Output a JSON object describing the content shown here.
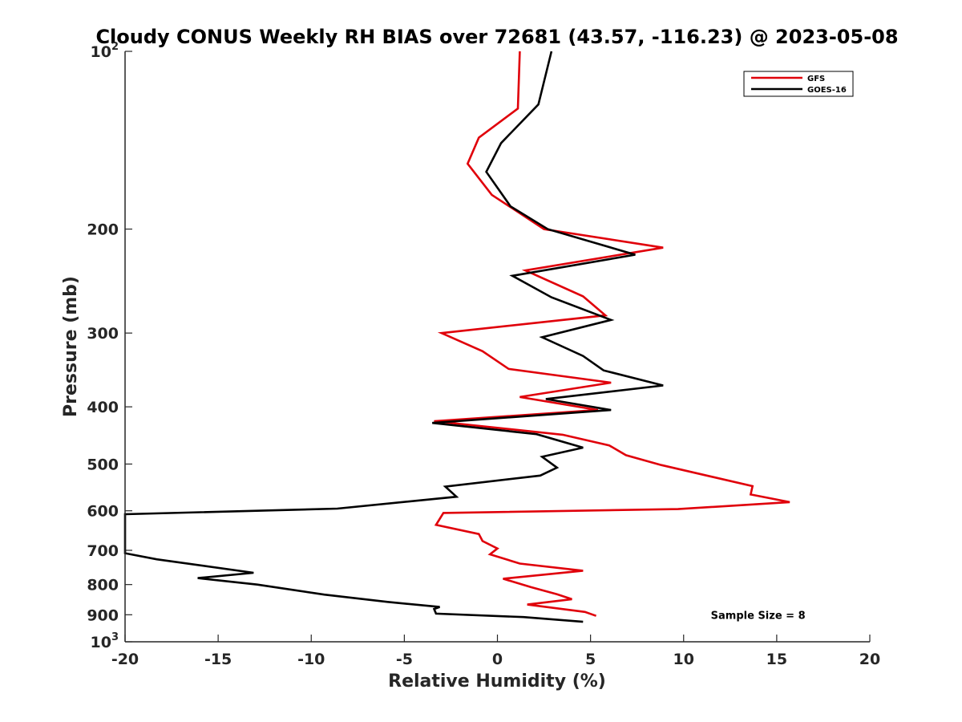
{
  "chart_data": {
    "type": "line",
    "title": "Cloudy CONUS Weekly RH BIAS over 72681 (43.57, -116.23) @ 2023-05-08",
    "xlabel": "Relative Humidity (%)",
    "ylabel": "Pressure (mb)",
    "xlim": [
      -20,
      20
    ],
    "ylim": [
      1000,
      100
    ],
    "y_scale": "log",
    "y_reversed": true,
    "grid": false,
    "legend_position": "top-right",
    "x_ticks": [
      -20,
      -15,
      -10,
      -5,
      0,
      5,
      10,
      15,
      20
    ],
    "x_tick_labels": [
      "-20",
      "-15",
      "-10",
      "-5",
      "0",
      "5",
      "10",
      "15",
      "20"
    ],
    "y_ticks": [
      100,
      200,
      300,
      400,
      500,
      600,
      700,
      800,
      900,
      1000
    ],
    "y_tick_labels": [
      {
        "base": "10",
        "exp": "2"
      },
      {
        "base": "200",
        "exp": ""
      },
      {
        "base": "300",
        "exp": ""
      },
      {
        "base": "400",
        "exp": ""
      },
      {
        "base": "500",
        "exp": ""
      },
      {
        "base": "600",
        "exp": ""
      },
      {
        "base": "700",
        "exp": ""
      },
      {
        "base": "800",
        "exp": ""
      },
      {
        "base": "900",
        "exp": ""
      },
      {
        "base": "10",
        "exp": "3"
      }
    ],
    "series": [
      {
        "name": "GFS",
        "color": "#e0000a",
        "points": [
          [
            1.2,
            100
          ],
          [
            1.1,
            125
          ],
          [
            -1.0,
            140
          ],
          [
            -1.6,
            155
          ],
          [
            -0.3,
            175
          ],
          [
            2.5,
            200
          ],
          [
            8.9,
            215
          ],
          [
            1.5,
            235
          ],
          [
            4.6,
            260
          ],
          [
            5.8,
            280
          ],
          [
            -3.0,
            300
          ],
          [
            -0.8,
            322
          ],
          [
            0.6,
            345
          ],
          [
            6.1,
            364
          ],
          [
            1.2,
            385
          ],
          [
            5.4,
            405
          ],
          [
            -3.4,
            423
          ],
          [
            3.5,
            446
          ],
          [
            6.0,
            465
          ],
          [
            6.9,
            483
          ],
          [
            8.8,
            502
          ],
          [
            13.7,
            545
          ],
          [
            13.6,
            563
          ],
          [
            15.7,
            580
          ],
          [
            9.7,
            596
          ],
          [
            -2.9,
            605
          ],
          [
            -3.3,
            634
          ],
          [
            -1.0,
            657
          ],
          [
            -0.8,
            675
          ],
          [
            0.0,
            695
          ],
          [
            -0.4,
            711
          ],
          [
            1.2,
            737
          ],
          [
            4.6,
            758
          ],
          [
            0.3,
            782
          ],
          [
            1.8,
            808
          ],
          [
            3.2,
            831
          ],
          [
            4.0,
            847
          ],
          [
            1.6,
            865
          ],
          [
            4.7,
            890
          ],
          [
            5.3,
            904
          ]
        ]
      },
      {
        "name": "GOES-16",
        "color": "#000000",
        "points": [
          [
            2.9,
            100
          ],
          [
            2.2,
            123
          ],
          [
            0.2,
            143
          ],
          [
            -0.6,
            160
          ],
          [
            0.7,
            183
          ],
          [
            2.7,
            200
          ],
          [
            7.4,
            221
          ],
          [
            0.8,
            240
          ],
          [
            2.9,
            261
          ],
          [
            6.1,
            285
          ],
          [
            2.4,
            305
          ],
          [
            4.6,
            328
          ],
          [
            5.7,
            347
          ],
          [
            8.9,
            368
          ],
          [
            2.6,
            388
          ],
          [
            6.1,
            405
          ],
          [
            -3.5,
            426
          ],
          [
            2.1,
            445
          ],
          [
            4.6,
            469
          ],
          [
            2.4,
            486
          ],
          [
            3.2,
            507
          ],
          [
            2.3,
            523
          ],
          [
            -2.8,
            546
          ],
          [
            -2.2,
            568
          ],
          [
            -8.6,
            595
          ],
          [
            -20.0,
            608
          ],
          [
            -20.0,
            708
          ],
          [
            -18.3,
            725
          ],
          [
            -13.1,
            764
          ],
          [
            -16.1,
            780
          ],
          [
            -12.9,
            800
          ],
          [
            -9.3,
            832
          ],
          [
            -5.9,
            856
          ],
          [
            -3.1,
            873
          ],
          [
            -3.4,
            880
          ],
          [
            -3.3,
            896
          ],
          [
            1.4,
            908
          ],
          [
            4.6,
            925
          ]
        ]
      }
    ],
    "annotations": [
      {
        "text": "Sample Size = 8",
        "x": 14.0,
        "y": 900
      }
    ]
  }
}
